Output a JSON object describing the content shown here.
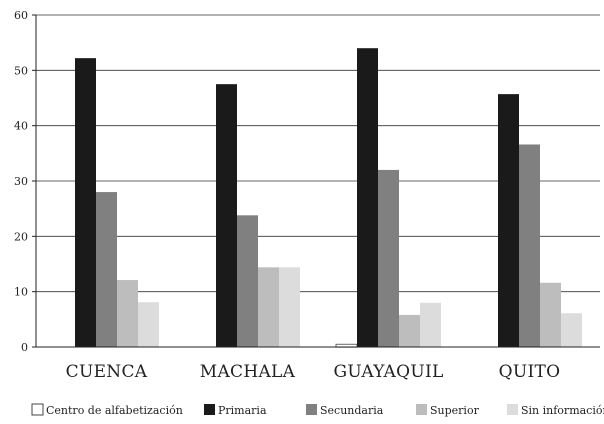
{
  "chart_data": {
    "type": "bar",
    "categories": [
      "CUENCA",
      "MACHALA",
      "GUAYAQUIL",
      "QUITO"
    ],
    "series": [
      {
        "name": "Centro de alfabetización",
        "color": "#ffffff",
        "values": [
          0,
          0,
          0.5,
          0
        ]
      },
      {
        "name": "Primaria",
        "color": "#1a1a1a",
        "values": [
          52.2,
          47.5,
          54,
          45.7
        ]
      },
      {
        "name": "Secundaria",
        "color": "#808080",
        "values": [
          28,
          23.8,
          32,
          36.6
        ]
      },
      {
        "name": "Superior",
        "color": "#bdbdbd",
        "values": [
          12.1,
          14.4,
          5.8,
          11.6
        ]
      },
      {
        "name": "Sin información",
        "color": "#dcdcdc",
        "values": [
          8.1,
          14.4,
          8,
          6.1
        ]
      }
    ],
    "title": "",
    "xlabel": "",
    "ylabel": "",
    "ylim": [
      0,
      60
    ],
    "yticks": [
      0,
      10,
      20,
      30,
      40,
      50,
      60
    ],
    "grid": true,
    "legend": "bottom"
  }
}
